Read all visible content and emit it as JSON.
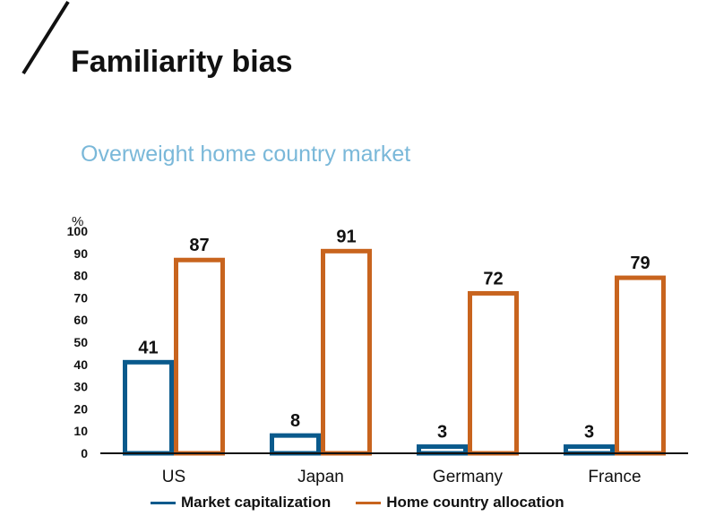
{
  "slide": {
    "title": "Familiarity bias",
    "subtitle": "Overweight home country market"
  },
  "colors": {
    "market_cap": "#0a5a8c",
    "home_alloc": "#c8641e",
    "subtitle": "#7ab8d9"
  },
  "chart_data": {
    "type": "bar",
    "title": "",
    "xlabel": "",
    "ylabel": "%",
    "ylim": [
      0,
      100
    ],
    "yticks": [
      0,
      10,
      20,
      30,
      40,
      50,
      60,
      70,
      80,
      90,
      100
    ],
    "categories": [
      "US",
      "Japan",
      "Germany",
      "France"
    ],
    "series": [
      {
        "name": "Market capitalization",
        "values": [
          41,
          8,
          3,
          3
        ]
      },
      {
        "name": "Home country allocation",
        "values": [
          87,
          91,
          72,
          79
        ]
      }
    ],
    "legend": "bottom",
    "grid": false
  }
}
